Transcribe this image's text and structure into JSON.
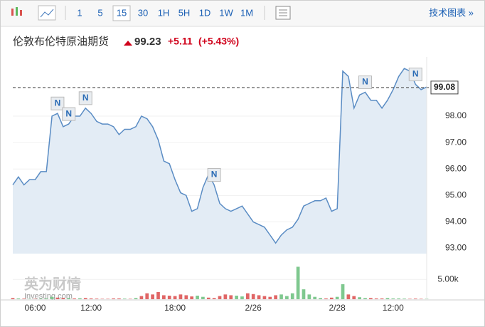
{
  "toolbar": {
    "intervals": [
      "1",
      "5",
      "15",
      "30",
      "1H",
      "5H",
      "1D",
      "1W",
      "1M"
    ],
    "active": 2,
    "technical": "技术图表 »"
  },
  "header": {
    "title": "伦敦布伦特原油期货",
    "price": "99.23",
    "change": "+5.11",
    "change_pct": "(+5.43%)"
  },
  "chart_data": [
    {
      "type": "area",
      "color": "#5a8cc4",
      "fill": "#e3ecf5",
      "categories": [
        null,
        null,
        null,
        null,
        "06:00",
        null,
        null,
        null,
        null,
        null,
        null,
        null,
        null,
        null,
        "12:00",
        null,
        null,
        null,
        null,
        null,
        null,
        null,
        null,
        null,
        null,
        null,
        null,
        null,
        null,
        "18:00",
        null,
        null,
        null,
        null,
        null,
        null,
        null,
        null,
        null,
        null,
        null,
        null,
        null,
        "2/26",
        null,
        null,
        null,
        null,
        null,
        null,
        null,
        null,
        null,
        null,
        null,
        null,
        null,
        null,
        "2/28",
        null,
        null,
        null,
        null,
        null,
        null,
        null,
        null,
        null,
        "12:00",
        null,
        null,
        null,
        null,
        null,
        null
      ],
      "values": [
        95.4,
        95.7,
        95.4,
        95.6,
        95.6,
        95.9,
        95.9,
        98.0,
        98.1,
        97.6,
        97.7,
        98.0,
        98.0,
        98.3,
        98.1,
        97.8,
        97.7,
        97.7,
        97.6,
        97.3,
        97.5,
        97.5,
        97.6,
        98.0,
        97.9,
        97.6,
        97.1,
        96.3,
        96.2,
        95.6,
        95.1,
        95.0,
        94.4,
        94.5,
        95.3,
        95.8,
        95.4,
        94.7,
        94.5,
        94.4,
        94.5,
        94.6,
        94.3,
        94.0,
        93.9,
        93.8,
        93.5,
        93.2,
        93.5,
        93.7,
        93.8,
        94.1,
        94.6,
        94.7,
        94.8,
        94.8,
        94.9,
        94.4,
        94.5,
        99.7,
        99.5,
        98.3,
        98.8,
        98.9,
        98.6,
        98.6,
        98.3,
        98.6,
        99.0,
        99.5,
        99.8,
        99.7,
        99.2,
        99.0,
        99.1
      ],
      "ylim": [
        92.8,
        100.1
      ],
      "yticks": [
        {
          "value": 93,
          "label": "93.00"
        },
        {
          "value": 94,
          "label": "94.00"
        },
        {
          "value": 95,
          "label": "95.00"
        },
        {
          "value": 96,
          "label": "96.00"
        },
        {
          "value": 97,
          "label": "97.00"
        },
        {
          "value": 98,
          "label": "98.00"
        }
      ],
      "last_value": {
        "value": 99.08,
        "label": "99.08"
      },
      "news_markers": [
        {
          "at": 8,
          "label": "N"
        },
        {
          "at": 10,
          "label": "N"
        },
        {
          "at": 13,
          "label": "N"
        },
        {
          "at": 36,
          "label": "N"
        },
        {
          "at": 63,
          "label": "N"
        },
        {
          "at": 72,
          "label": "N"
        }
      ],
      "watermark": [
        "英为财情",
        "Investing.com"
      ]
    },
    {
      "type": "bar",
      "values": [
        300,
        200,
        150,
        100,
        100,
        150,
        200,
        600,
        400,
        300,
        300,
        200,
        250,
        300,
        200,
        150,
        100,
        100,
        200,
        200,
        150,
        100,
        300,
        800,
        1500,
        1200,
        1800,
        1000,
        900,
        800,
        1200,
        1000,
        700,
        900,
        600,
        400,
        300,
        800,
        1200,
        1000,
        900,
        700,
        1500,
        1300,
        1000,
        800,
        600,
        1000,
        1200,
        800,
        1500,
        8200,
        2500,
        1200,
        600,
        300,
        200,
        400,
        600,
        3800,
        1200,
        800,
        500,
        300,
        300,
        200,
        200,
        300,
        200,
        200,
        150,
        100,
        150,
        100,
        100
      ],
      "colors": [
        "#e06666",
        "#7fc88f",
        "#e06666",
        "#7fc88f",
        "#e06666",
        "#7fc88f",
        "#7fc88f",
        "#7fc88f",
        "#e06666",
        "#e06666",
        "#7fc88f",
        "#e06666",
        "#7fc88f",
        "#e06666",
        "#e06666",
        "#e06666",
        "#e06666",
        "#e06666",
        "#e06666",
        "#e06666",
        "#7fc88f",
        "#e06666",
        "#7fc88f",
        "#e06666",
        "#e06666",
        "#e06666",
        "#e06666",
        "#e06666",
        "#e06666",
        "#e06666",
        "#e06666",
        "#e06666",
        "#e06666",
        "#7fc88f",
        "#7fc88f",
        "#e06666",
        "#e06666",
        "#e06666",
        "#e06666",
        "#e06666",
        "#7fc88f",
        "#7fc88f",
        "#e06666",
        "#e06666",
        "#e06666",
        "#e06666",
        "#e06666",
        "#e06666",
        "#7fc88f",
        "#7fc88f",
        "#7fc88f",
        "#7fc88f",
        "#7fc88f",
        "#7fc88f",
        "#7fc88f",
        "#7fc88f",
        "#e06666",
        "#e06666",
        "#7fc88f",
        "#7fc88f",
        "#e06666",
        "#e06666",
        "#7fc88f",
        "#7fc88f",
        "#e06666",
        "#e06666",
        "#e06666",
        "#7fc88f",
        "#7fc88f",
        "#7fc88f",
        "#7fc88f",
        "#e06666",
        "#e06666",
        "#e06666",
        "#7fc88f"
      ],
      "ylim": [
        0,
        9000
      ],
      "yticks": [
        {
          "value": 5000,
          "label": "5.00k"
        }
      ]
    }
  ]
}
